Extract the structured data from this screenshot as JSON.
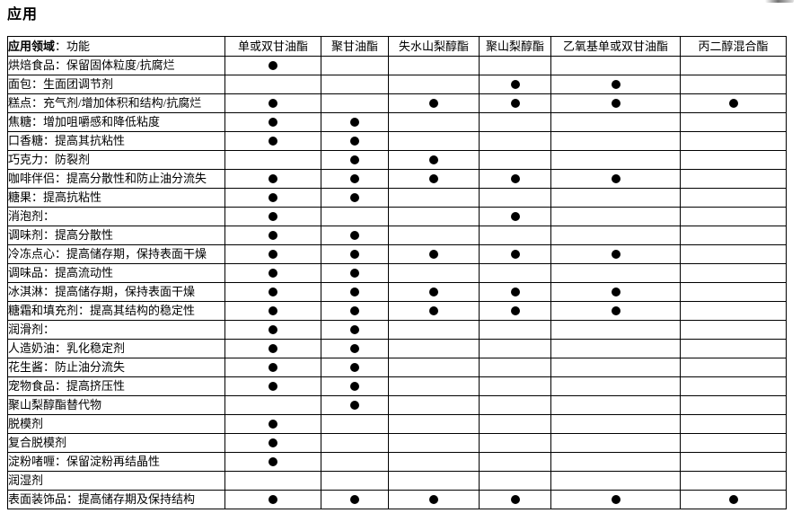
{
  "title": "应用",
  "table": {
    "header": {
      "area_label_bold": "应用领域",
      "area_label_rest": "：功能",
      "products": [
        "单或双甘油酯",
        "聚甘油酯",
        "失水山梨醇酯",
        "聚山梨醇酯",
        "乙氧基单或双甘油酯",
        "丙二醇混合酯"
      ]
    },
    "bullet_symbol": "●",
    "rows": [
      {
        "label": "烘焙食品：保留固体粒度/抗腐烂",
        "marks": [
          1,
          0,
          0,
          0,
          0,
          0
        ]
      },
      {
        "label": "面包：生面团调节剂",
        "marks": [
          0,
          0,
          0,
          1,
          1,
          0
        ]
      },
      {
        "label": "糕点：充气剂/增加体积和结构/抗腐烂",
        "marks": [
          1,
          0,
          1,
          1,
          1,
          1
        ]
      },
      {
        "label": "焦糖：增加咀嚼感和降低粘度",
        "marks": [
          1,
          1,
          0,
          0,
          0,
          0
        ]
      },
      {
        "label": "口香糖：提高其抗粘性",
        "marks": [
          1,
          1,
          0,
          0,
          0,
          0
        ]
      },
      {
        "label": "巧克力：防裂剂",
        "marks": [
          0,
          1,
          1,
          0,
          0,
          0
        ]
      },
      {
        "label": "咖啡伴侣：提高分散性和防止油分流失",
        "marks": [
          1,
          1,
          1,
          1,
          1,
          0
        ]
      },
      {
        "label": "糖果：提高抗粘性",
        "marks": [
          1,
          1,
          0,
          0,
          0,
          0
        ]
      },
      {
        "label": "消泡剂：",
        "marks": [
          1,
          0,
          0,
          1,
          0,
          0
        ]
      },
      {
        "label": "调味剂：提高分散性",
        "marks": [
          1,
          1,
          0,
          0,
          0,
          0
        ]
      },
      {
        "label": "冷冻点心：提高储存期，保持表面干燥",
        "marks": [
          1,
          1,
          1,
          1,
          1,
          0
        ]
      },
      {
        "label": "调味品：提高流动性",
        "marks": [
          1,
          1,
          0,
          0,
          0,
          0
        ]
      },
      {
        "label": "冰淇淋：提高储存期，保持表面干燥",
        "marks": [
          1,
          1,
          1,
          1,
          1,
          0
        ]
      },
      {
        "label": "糖霜和填充剂：提高其结构的稳定性",
        "marks": [
          1,
          1,
          1,
          1,
          1,
          0
        ]
      },
      {
        "label": "润滑剂：",
        "marks": [
          1,
          1,
          0,
          0,
          0,
          0
        ]
      },
      {
        "label": "人造奶油：乳化稳定剂",
        "marks": [
          1,
          1,
          0,
          0,
          0,
          0
        ]
      },
      {
        "label": "花生酱：防止油分流失",
        "marks": [
          1,
          1,
          0,
          0,
          0,
          0
        ]
      },
      {
        "label": "宠物食品：提高挤压性",
        "marks": [
          1,
          1,
          0,
          0,
          0,
          0
        ]
      },
      {
        "label": "聚山梨醇酯替代物",
        "marks": [
          0,
          1,
          0,
          0,
          0,
          0
        ]
      },
      {
        "label": "脱模剂",
        "marks": [
          1,
          0,
          0,
          0,
          0,
          0
        ]
      },
      {
        "label": "复合脱模剂",
        "marks": [
          1,
          0,
          0,
          0,
          0,
          0
        ]
      },
      {
        "label": "淀粉啫喱：保留淀粉再结晶性",
        "marks": [
          1,
          0,
          0,
          0,
          0,
          0
        ]
      },
      {
        "label": "润湿剂",
        "marks": [
          0,
          0,
          0,
          0,
          0,
          0
        ]
      },
      {
        "label": "表面装饰品：提高储存期及保持结构",
        "marks": [
          1,
          1,
          1,
          1,
          1,
          1
        ]
      }
    ]
  }
}
